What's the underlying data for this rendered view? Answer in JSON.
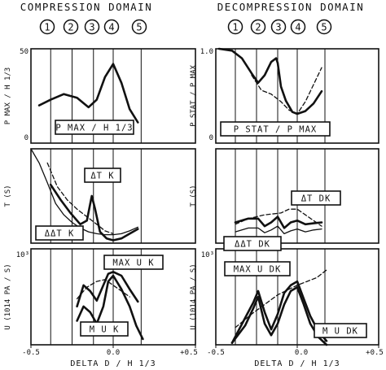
{
  "header": {
    "compression_title": "COMPRESSION DOMAIN",
    "decompression_title": "DECOMPRESSION DOMAIN",
    "phases": [
      "1",
      "2",
      "3",
      "4",
      "5"
    ]
  },
  "colors": {
    "ink": "#111111",
    "background": "#ffffff"
  },
  "chart_data": [
    {
      "type": "line",
      "panel": "compression-top",
      "ylabel": "P MAX / H 1/3",
      "yticks": [
        "50",
        "0"
      ],
      "ylim": [
        0,
        50
      ],
      "xlim": [
        -0.5,
        0.5
      ],
      "phase_boundaries": [
        -0.38,
        -0.25,
        -0.12,
        0.0,
        0.17
      ],
      "annotations": [
        "P MAX / H 1/3"
      ],
      "series": [
        {
          "style": "solid",
          "weight": "thick",
          "x": [
            -0.45,
            -0.38,
            -0.3,
            -0.22,
            -0.15,
            -0.1,
            -0.05,
            0.0,
            0.05,
            0.1,
            0.15
          ],
          "y": [
            20,
            23,
            26,
            24,
            19,
            23,
            35,
            42,
            32,
            18,
            11
          ]
        }
      ]
    },
    {
      "type": "line",
      "panel": "decompression-top",
      "ylabel": "P STAT / P MAX",
      "yticks": [
        "1.0",
        "0"
      ],
      "ylim": [
        0,
        1.0
      ],
      "xlim": [
        -0.5,
        0.5
      ],
      "phase_boundaries": [
        -0.38,
        -0.25,
        -0.12,
        0.0,
        0.17
      ],
      "annotations": [
        "P STAT / P MAX"
      ],
      "series": [
        {
          "style": "solid",
          "weight": "thick",
          "x": [
            -0.48,
            -0.4,
            -0.34,
            -0.28,
            -0.24,
            -0.2,
            -0.16,
            -0.13,
            -0.12,
            -0.1,
            -0.07,
            -0.03,
            0.0,
            0.05,
            0.1,
            0.15
          ],
          "y": [
            1.0,
            0.98,
            0.9,
            0.74,
            0.64,
            0.72,
            0.86,
            0.9,
            0.85,
            0.6,
            0.45,
            0.33,
            0.31,
            0.34,
            0.42,
            0.55
          ]
        },
        {
          "style": "dashed",
          "weight": "thin",
          "x": [
            -0.28,
            -0.22,
            -0.16,
            -0.1,
            -0.05,
            0.0,
            0.05,
            0.1,
            0.15
          ],
          "y": [
            0.72,
            0.56,
            0.52,
            0.44,
            0.35,
            0.31,
            0.44,
            0.62,
            0.8
          ]
        }
      ]
    },
    {
      "type": "line",
      "panel": "compression-middle",
      "ylabel": "T (S)",
      "xlim": [
        -0.5,
        0.5
      ],
      "phase_boundaries": [
        -0.38,
        -0.25,
        -0.12,
        0.0,
        0.17
      ],
      "annotations": [
        "ΔT K",
        "ΔΔT K"
      ],
      "series": [
        {
          "style": "solid",
          "weight": "thick",
          "x": [
            -0.38,
            -0.32,
            -0.26,
            -0.2,
            -0.16,
            -0.13,
            -0.11,
            -0.08,
            -0.04,
            0.0,
            0.05,
            0.1,
            0.15
          ],
          "y": [
            0.62,
            0.46,
            0.32,
            0.2,
            0.24,
            0.5,
            0.36,
            0.12,
            0.05,
            0.03,
            0.05,
            0.1,
            0.15
          ]
        },
        {
          "style": "solid",
          "weight": "thin",
          "x": [
            -0.5,
            -0.45,
            -0.4,
            -0.35,
            -0.3,
            -0.25,
            -0.2,
            -0.15,
            -0.1,
            -0.05,
            0.0,
            0.05,
            0.1,
            0.15
          ],
          "y": [
            1.0,
            0.85,
            0.64,
            0.42,
            0.3,
            0.22,
            0.16,
            0.12,
            0.1,
            0.09,
            0.09,
            0.1,
            0.13,
            0.17
          ]
        },
        {
          "style": "dashed",
          "weight": "thin",
          "x": [
            -0.4,
            -0.34,
            -0.28,
            -0.22,
            -0.16,
            -0.1,
            -0.05,
            0.0
          ],
          "y": [
            0.85,
            0.6,
            0.46,
            0.36,
            0.28,
            0.2,
            0.13,
            0.1
          ]
        }
      ]
    },
    {
      "type": "line",
      "panel": "decompression-middle",
      "ylabel": "T (S)",
      "xlim": [
        -0.5,
        0.5
      ],
      "phase_boundaries": [
        -0.38,
        -0.25,
        -0.12,
        0.0,
        0.17
      ],
      "annotations": [
        "ΔT DK",
        "ΔΔT DK"
      ],
      "series": [
        {
          "style": "solid",
          "weight": "thick",
          "x": [
            -0.38,
            -0.3,
            -0.24,
            -0.2,
            -0.16,
            -0.12,
            -0.08,
            -0.04,
            0.0,
            0.05,
            0.1,
            0.15
          ],
          "y": [
            0.22,
            0.26,
            0.26,
            0.18,
            0.22,
            0.28,
            0.16,
            0.22,
            0.24,
            0.2,
            0.21,
            0.22
          ]
        },
        {
          "style": "solid",
          "weight": "thin",
          "x": [
            -0.38,
            -0.3,
            -0.24,
            -0.2,
            -0.16,
            -0.12,
            -0.08,
            -0.04,
            0.0,
            0.05,
            0.1,
            0.15
          ],
          "y": [
            0.12,
            0.16,
            0.16,
            0.11,
            0.14,
            0.18,
            0.1,
            0.13,
            0.15,
            0.12,
            0.14,
            0.15
          ]
        },
        {
          "style": "dashed",
          "weight": "thin",
          "x": [
            -0.38,
            -0.3,
            -0.2,
            -0.1,
            -0.05,
            0.0,
            0.05,
            0.1,
            0.15
          ],
          "y": [
            0.2,
            0.26,
            0.3,
            0.32,
            0.36,
            0.36,
            0.3,
            0.24,
            0.18
          ]
        }
      ]
    },
    {
      "type": "line",
      "panel": "compression-bottom",
      "ylabel": "U (1014 PA / S)",
      "yticks": [
        "10³"
      ],
      "xlim": [
        -0.5,
        0.5
      ],
      "xticks": [
        "-0.5",
        "0.0",
        "+0.5"
      ],
      "xlabel": "DELTA D / H 1/3",
      "phase_boundaries": [
        -0.38,
        -0.25,
        -0.12,
        0.0,
        0.17
      ],
      "annotations": [
        "MAX U K",
        "M U K"
      ],
      "series": [
        {
          "style": "solid",
          "weight": "thick",
          "x": [
            -0.22,
            -0.18,
            -0.14,
            -0.1,
            -0.06,
            -0.03,
            0.0,
            0.05,
            0.1,
            0.15
          ],
          "y": [
            0.4,
            0.62,
            0.56,
            0.46,
            0.62,
            0.74,
            0.76,
            0.72,
            0.58,
            0.45
          ]
        },
        {
          "style": "solid",
          "weight": "thick",
          "x": [
            -0.22,
            -0.18,
            -0.14,
            -0.1,
            -0.06,
            -0.03,
            0.0,
            0.05,
            0.1,
            0.14,
            0.18
          ],
          "y": [
            0.25,
            0.4,
            0.34,
            0.22,
            0.4,
            0.66,
            0.72,
            0.58,
            0.4,
            0.2,
            0.06
          ]
        },
        {
          "style": "dashed",
          "weight": "thin",
          "x": [
            -0.22,
            -0.16,
            -0.1,
            -0.05,
            0.0,
            0.05,
            0.1
          ],
          "y": [
            0.48,
            0.6,
            0.66,
            0.68,
            0.62,
            0.56,
            0.5
          ]
        }
      ]
    },
    {
      "type": "line",
      "panel": "decompression-bottom",
      "ylabel": "U (1014 PA / S)",
      "yticks": [
        "10³"
      ],
      "xlim": [
        -0.5,
        0.5
      ],
      "xticks": [
        "-0.5",
        "0.0",
        "+0.5"
      ],
      "xlabel": "DELTA D / H 1/3",
      "phase_boundaries": [
        -0.38,
        -0.25,
        -0.12,
        0.0,
        0.17
      ],
      "annotations": [
        "MAX U DK",
        "M U DK"
      ],
      "series": [
        {
          "style": "solid",
          "weight": "thick",
          "x": [
            -0.4,
            -0.32,
            -0.27,
            -0.24,
            -0.2,
            -0.16,
            -0.12,
            -0.08,
            -0.04,
            0.0,
            0.04,
            0.08,
            0.13,
            0.18
          ],
          "y": [
            0.02,
            0.28,
            0.44,
            0.56,
            0.34,
            0.16,
            0.32,
            0.54,
            0.62,
            0.66,
            0.48,
            0.3,
            0.14,
            0.04
          ]
        },
        {
          "style": "solid",
          "weight": "thick",
          "x": [
            -0.4,
            -0.32,
            -0.27,
            -0.24,
            -0.2,
            -0.16,
            -0.12,
            -0.08,
            -0.04,
            0.0,
            0.04,
            0.08,
            0.13,
            0.18
          ],
          "y": [
            0.02,
            0.2,
            0.38,
            0.5,
            0.22,
            0.1,
            0.22,
            0.42,
            0.56,
            0.6,
            0.42,
            0.22,
            0.08,
            0.0
          ]
        },
        {
          "style": "dashed",
          "weight": "thin",
          "x": [
            -0.38,
            -0.28,
            -0.2,
            -0.12,
            -0.05,
            0.0,
            0.06,
            0.12,
            0.18
          ],
          "y": [
            0.18,
            0.32,
            0.42,
            0.52,
            0.58,
            0.62,
            0.66,
            0.7,
            0.78
          ]
        }
      ]
    }
  ]
}
